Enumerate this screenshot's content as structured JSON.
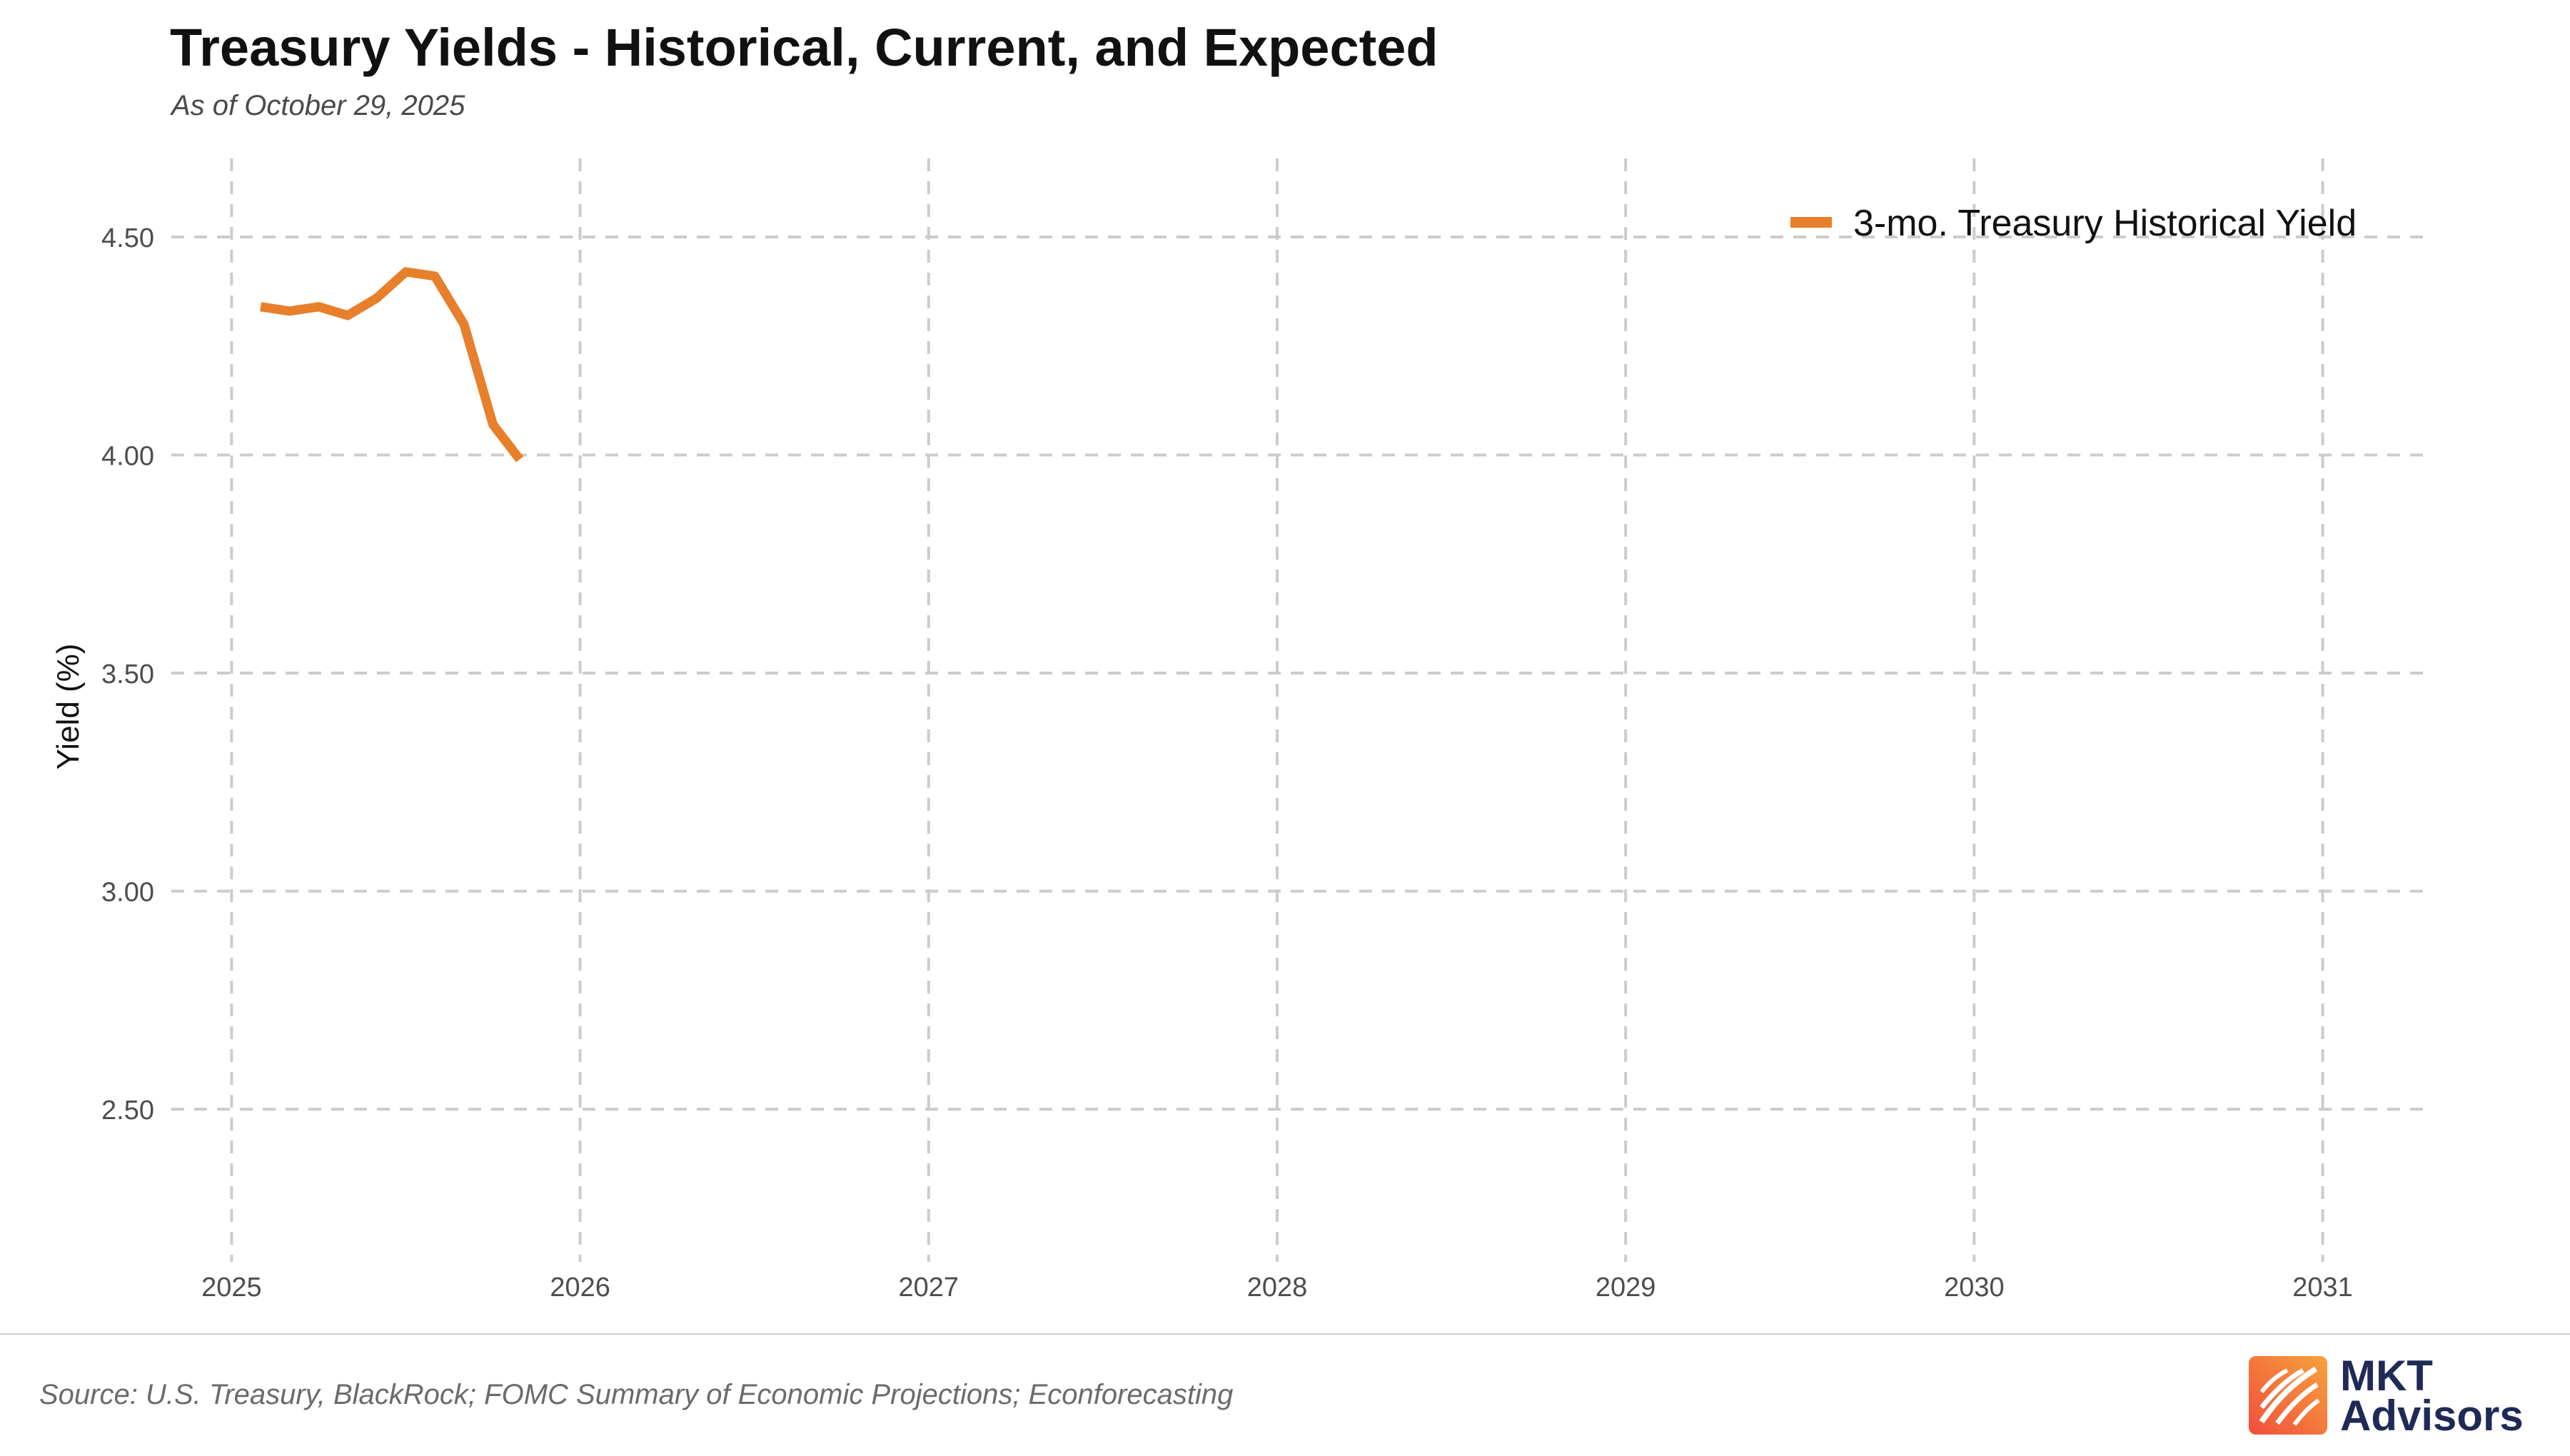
{
  "header": {
    "title": "Treasury Yields - Historical, Current, and Expected",
    "subtitle": "As of October 29, 2025"
  },
  "footer": {
    "source": "Source: U.S. Treasury, BlackRock; FOMC Summary of Economic Projections; Econforecasting",
    "logo_line1": "MKT",
    "logo_line2": "Advisors"
  },
  "colors": {
    "series": "#e77f2b",
    "grid": "#cccccc",
    "logo_dark": "#1f2a56",
    "logo_orange": "#f07b2e"
  },
  "chart_data": {
    "type": "line",
    "title": "Treasury Yields - Historical, Current, and Expected",
    "subtitle": "As of October 29, 2025",
    "xlabel": "",
    "ylabel": "Yield (%)",
    "xlim": [
      2024.95,
      2031.3
    ],
    "ylim": [
      2.15,
      4.68
    ],
    "x_ticks": [
      2025,
      2026,
      2027,
      2028,
      2029,
      2030,
      2031
    ],
    "x_tick_labels": [
      "2025",
      "2026",
      "2027",
      "2028",
      "2029",
      "2030",
      "2031"
    ],
    "y_ticks": [
      2.5,
      3.0,
      3.5,
      4.0,
      4.5
    ],
    "y_tick_labels": [
      "2.50",
      "3.00",
      "3.50",
      "4.00",
      "4.50"
    ],
    "grid": true,
    "grid_style": "dashed",
    "legend_position": "top-right",
    "series": [
      {
        "name": "3-mo. Treasury Historical Yield",
        "color": "#e77f2b",
        "x": [
          "2025-02",
          "2025-03",
          "2025-04",
          "2025-05",
          "2025-06",
          "2025-07",
          "2025-08",
          "2025-09",
          "2025-10",
          "2025-10-29"
        ],
        "values": [
          4.34,
          4.33,
          4.34,
          4.32,
          4.36,
          4.42,
          4.41,
          4.3,
          4.07,
          3.99
        ]
      }
    ]
  }
}
